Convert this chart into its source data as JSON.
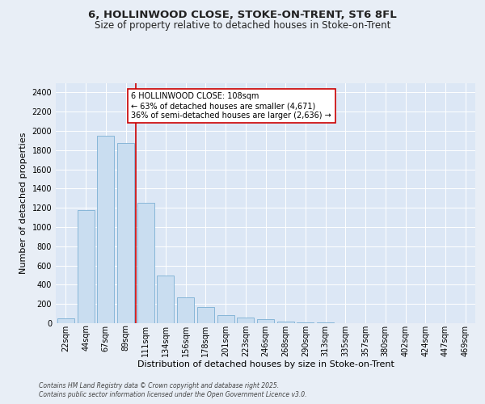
{
  "title1": "6, HOLLINWOOD CLOSE, STOKE-ON-TRENT, ST6 8FL",
  "title2": "Size of property relative to detached houses in Stoke-on-Trent",
  "xlabel": "Distribution of detached houses by size in Stoke-on-Trent",
  "ylabel": "Number of detached properties",
  "categories": [
    "22sqm",
    "44sqm",
    "67sqm",
    "89sqm",
    "111sqm",
    "134sqm",
    "156sqm",
    "178sqm",
    "201sqm",
    "223sqm",
    "246sqm",
    "268sqm",
    "290sqm",
    "313sqm",
    "335sqm",
    "357sqm",
    "380sqm",
    "402sqm",
    "424sqm",
    "447sqm",
    "469sqm"
  ],
  "values": [
    50,
    1175,
    1950,
    1875,
    1250,
    500,
    270,
    165,
    80,
    55,
    45,
    20,
    10,
    5,
    3,
    2,
    1,
    1,
    1,
    0,
    0
  ],
  "bar_color": "#c9ddf0",
  "bar_edge_color": "#7bafd4",
  "vline_color": "#cc0000",
  "vline_pos": 3.5,
  "annotation_text": "6 HOLLINWOOD CLOSE: 108sqm\n← 63% of detached houses are smaller (4,671)\n36% of semi-detached houses are larger (2,636) →",
  "annotation_box_color": "#ffffff",
  "annotation_box_edge": "#cc0000",
  "ylim": [
    0,
    2500
  ],
  "yticks": [
    0,
    200,
    400,
    600,
    800,
    1000,
    1200,
    1400,
    1600,
    1800,
    2000,
    2200,
    2400
  ],
  "footer1": "Contains HM Land Registry data © Crown copyright and database right 2025.",
  "footer2": "Contains public sector information licensed under the Open Government Licence v3.0.",
  "bg_color": "#e8eef6",
  "plot_bg_color": "#dce7f5",
  "grid_color": "#ffffff",
  "title_fontsize": 9.5,
  "subtitle_fontsize": 8.5,
  "axis_label_fontsize": 8,
  "tick_fontsize": 7,
  "annotation_fontsize": 7,
  "footer_fontsize": 5.5
}
